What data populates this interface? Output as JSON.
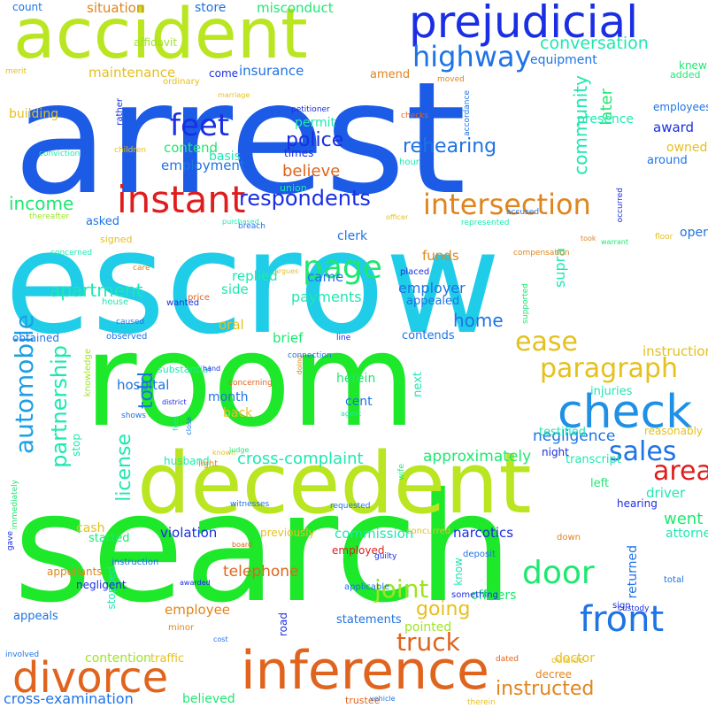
{
  "words": [
    {
      "text": "arrest",
      "color": "#1b5be6"
    },
    {
      "text": "escrow",
      "color": "#1fcde8"
    },
    {
      "text": "room",
      "color": "#1de82a"
    },
    {
      "text": "search",
      "color": "#1de82a"
    },
    {
      "text": "decedent",
      "color": "#b9e521"
    },
    {
      "text": "accident",
      "color": "#b9e521"
    },
    {
      "text": "prejudicial",
      "color": "#1a2ee3"
    },
    {
      "text": "inference",
      "color": "#e0641d"
    },
    {
      "text": "divorce",
      "color": "#e0641d"
    },
    {
      "text": "check",
      "color": "#1e90e5"
    },
    {
      "text": "instant",
      "color": "#e01d1d"
    },
    {
      "text": "automobile",
      "color": "#1e9fe5"
    },
    {
      "text": "front",
      "color": "#1e73e5"
    },
    {
      "text": "highway",
      "color": "#1e73e5"
    },
    {
      "text": "feet",
      "color": "#1a2ee3"
    },
    {
      "text": "intersection",
      "color": "#e0851d"
    },
    {
      "text": "page",
      "color": "#1de870"
    },
    {
      "text": "door",
      "color": "#1de870"
    },
    {
      "text": "paragraph",
      "color": "#e5c01e"
    },
    {
      "text": "ease",
      "color": "#e5c01e"
    },
    {
      "text": "area",
      "color": "#e01d1d"
    },
    {
      "text": "sales",
      "color": "#1e73e5"
    },
    {
      "text": "respondents",
      "color": "#1a2ee3"
    },
    {
      "text": "partnership",
      "color": "#1de8b0"
    },
    {
      "text": "rehearing",
      "color": "#1e73e5"
    },
    {
      "text": "license",
      "color": "#1de8b0"
    },
    {
      "text": "truck",
      "color": "#e0641d"
    },
    {
      "text": "joint",
      "color": "#9ee521"
    },
    {
      "text": "going",
      "color": "#e5c01e"
    },
    {
      "text": "instructed",
      "color": "#e0851d"
    },
    {
      "text": "told",
      "color": "#1e73e5"
    },
    {
      "text": "police",
      "color": "#1a2ee3"
    },
    {
      "text": "income",
      "color": "#1de870"
    },
    {
      "text": "community",
      "color": "#1de8b0"
    },
    {
      "text": "apartment",
      "color": "#1de8b0"
    },
    {
      "text": "conversation",
      "color": "#1de8b0"
    },
    {
      "text": "home",
      "color": "#1e73e5"
    },
    {
      "text": "cross-complaint",
      "color": "#1de8b0"
    },
    {
      "text": "negligence",
      "color": "#1e73e5"
    },
    {
      "text": "later",
      "color": "#1de870"
    },
    {
      "text": "award",
      "color": "#1a2ee3"
    },
    {
      "text": "payments",
      "color": "#1de8b0"
    },
    {
      "text": "believe",
      "color": "#e0641d"
    },
    {
      "text": "funds",
      "color": "#e0851d"
    },
    {
      "text": "employer",
      "color": "#1e73e5"
    },
    {
      "text": "telephone",
      "color": "#e0641d"
    },
    {
      "text": "approximately",
      "color": "#1de870"
    },
    {
      "text": "went",
      "color": "#1de870"
    },
    {
      "text": "driver",
      "color": "#1de8b0"
    },
    {
      "text": "supra",
      "color": "#1de8b0"
    },
    {
      "text": "cross-examination",
      "color": "#1e73e5"
    },
    {
      "text": "hospital",
      "color": "#1e73e5"
    },
    {
      "text": "employee",
      "color": "#e0851d"
    },
    {
      "text": "commission",
      "color": "#1de8b0"
    },
    {
      "text": "narcotics",
      "color": "#1a2ee3"
    },
    {
      "text": "violation",
      "color": "#1a2ee3"
    },
    {
      "text": "employment",
      "color": "#1e73e5"
    },
    {
      "text": "contend",
      "color": "#1de870"
    },
    {
      "text": "insurance",
      "color": "#1e73e5"
    },
    {
      "text": "maintenance",
      "color": "#e5c01e"
    },
    {
      "text": "situation",
      "color": "#e0851d"
    },
    {
      "text": "misconduct",
      "color": "#1de870"
    },
    {
      "text": "count",
      "color": "#1e73e5"
    },
    {
      "text": "store",
      "color": "#1e73e5"
    },
    {
      "text": "equipment",
      "color": "#1e73e5"
    },
    {
      "text": "building",
      "color": "#e5c01e"
    },
    {
      "text": "owned",
      "color": "#e5c01e"
    },
    {
      "text": "employees",
      "color": "#1e73e5"
    },
    {
      "text": "around",
      "color": "#1e73e5"
    },
    {
      "text": "permit",
      "color": "#1de8b0"
    },
    {
      "text": "basis",
      "color": "#1de8b0"
    },
    {
      "text": "times",
      "color": "#1a2ee3"
    },
    {
      "text": "operation",
      "color": "#1e73e5"
    },
    {
      "text": "clerk",
      "color": "#1e73e5"
    },
    {
      "text": "came",
      "color": "#1e73e5"
    },
    {
      "text": "replied",
      "color": "#1de8b0"
    },
    {
      "text": "side",
      "color": "#1de8b0"
    },
    {
      "text": "oral",
      "color": "#e5c01e"
    },
    {
      "text": "brief",
      "color": "#1de870"
    },
    {
      "text": "appealed",
      "color": "#1e73e5"
    },
    {
      "text": "contends",
      "color": "#1e73e5"
    },
    {
      "text": "instructions",
      "color": "#e5c01e"
    },
    {
      "text": "herein",
      "color": "#1de870"
    },
    {
      "text": "cent",
      "color": "#1e73e5"
    },
    {
      "text": "back",
      "color": "#e5c01e"
    },
    {
      "text": "month",
      "color": "#1e73e5"
    },
    {
      "text": "next",
      "color": "#1de8b0"
    },
    {
      "text": "testified",
      "color": "#1de8b0"
    },
    {
      "text": "injuries",
      "color": "#1de8b0"
    },
    {
      "text": "reasonably",
      "color": "#e5c01e"
    },
    {
      "text": "transcript",
      "color": "#1de8b0"
    },
    {
      "text": "night",
      "color": "#1a2ee3"
    },
    {
      "text": "left",
      "color": "#1de870"
    },
    {
      "text": "hearing",
      "color": "#1a2ee3"
    },
    {
      "text": "attorneys",
      "color": "#1de8b0"
    },
    {
      "text": "officers",
      "color": "#1de870"
    },
    {
      "text": "pointed",
      "color": "#9ee521"
    },
    {
      "text": "returned",
      "color": "#1e73e5"
    },
    {
      "text": "doctor",
      "color": "#e5c01e"
    },
    {
      "text": "decree",
      "color": "#e0851d"
    },
    {
      "text": "cash",
      "color": "#e5c01e"
    },
    {
      "text": "started",
      "color": "#1de870"
    },
    {
      "text": "previously",
      "color": "#e5c01e"
    },
    {
      "text": "appeals",
      "color": "#1e73e5"
    },
    {
      "text": "stopped",
      "color": "#1de8b0"
    },
    {
      "text": "contention",
      "color": "#9ee521"
    },
    {
      "text": "traffic",
      "color": "#e5c01e"
    },
    {
      "text": "believed",
      "color": "#1de870"
    },
    {
      "text": "statements",
      "color": "#1e73e5"
    },
    {
      "text": "road",
      "color": "#1a2ee3"
    },
    {
      "text": "know",
      "color": "#1de8b0"
    },
    {
      "text": "stop",
      "color": "#1de8b0"
    },
    {
      "text": "appellants",
      "color": "#e0851d"
    },
    {
      "text": "negligent",
      "color": "#1a2ee3"
    },
    {
      "text": "asked",
      "color": "#1e73e5"
    },
    {
      "text": "affidavit",
      "color": "#9ee521"
    },
    {
      "text": "come",
      "color": "#1a2ee3"
    },
    {
      "text": "amend",
      "color": "#e0851d"
    },
    {
      "text": "knew",
      "color": "#1de870"
    },
    {
      "text": "added",
      "color": "#1de870"
    },
    {
      "text": "presence",
      "color": "#1de8b0"
    },
    {
      "text": "merit",
      "color": "#e5c01e"
    },
    {
      "text": "signed",
      "color": "#e5c01e"
    },
    {
      "text": "house",
      "color": "#1de8b0"
    },
    {
      "text": "wanted",
      "color": "#1a2ee3"
    },
    {
      "text": "observed",
      "color": "#1e73e5"
    },
    {
      "text": "obtained",
      "color": "#1e73e5"
    },
    {
      "text": "substantial",
      "color": "#1de8b0"
    },
    {
      "text": "husband",
      "color": "#1de8b0"
    },
    {
      "text": "trustee",
      "color": "#e0641d"
    },
    {
      "text": "concurred",
      "color": "#e5c01e"
    },
    {
      "text": "employed",
      "color": "#e01d1d"
    },
    {
      "text": "guilty",
      "color": "#1a2ee3"
    },
    {
      "text": "deposit",
      "color": "#1e73e5"
    },
    {
      "text": "down",
      "color": "#e0851d"
    },
    {
      "text": "total",
      "color": "#1e73e5"
    },
    {
      "text": "sign",
      "color": "#1a2ee3"
    },
    {
      "text": "custody",
      "color": "#1a2ee3"
    },
    {
      "text": "dated",
      "color": "#e0641d"
    },
    {
      "text": "outside",
      "color": "#e5c01e"
    },
    {
      "text": "therein",
      "color": "#e5c01e"
    },
    {
      "text": "vehicle",
      "color": "#1e73e5"
    },
    {
      "text": "something",
      "color": "#1a2ee3"
    },
    {
      "text": "applicable",
      "color": "#1e73e5"
    },
    {
      "text": "cost",
      "color": "#1e73e5"
    },
    {
      "text": "minor",
      "color": "#e0851d"
    },
    {
      "text": "involved",
      "color": "#1e73e5"
    },
    {
      "text": "gave",
      "color": "#1a2ee3"
    },
    {
      "text": "immediately",
      "color": "#1de870"
    },
    {
      "text": "instruction",
      "color": "#1e73e5"
    },
    {
      "text": "awarded",
      "color": "#1a2ee3"
    },
    {
      "text": "board",
      "color": "#e0641d"
    },
    {
      "text": "requested",
      "color": "#1e73e5"
    },
    {
      "text": "witnesses",
      "color": "#1e73e5"
    },
    {
      "text": "light",
      "color": "#e0851d"
    },
    {
      "text": "known",
      "color": "#e5c01e"
    },
    {
      "text": "wife",
      "color": "#1de870"
    },
    {
      "text": "judge",
      "color": "#1de870"
    },
    {
      "text": "agent",
      "color": "#1de8b0"
    },
    {
      "text": "fees",
      "color": "#1de8b0"
    },
    {
      "text": "close",
      "color": "#1e73e5"
    },
    {
      "text": "shows",
      "color": "#1e73e5"
    },
    {
      "text": "district",
      "color": "#1a2ee3"
    },
    {
      "text": "concerning",
      "color": "#e0641d"
    },
    {
      "text": "hand",
      "color": "#1a2ee3"
    },
    {
      "text": "doing",
      "color": "#e0851d"
    },
    {
      "text": "knowledge",
      "color": "#9ee521"
    },
    {
      "text": "connection",
      "color": "#1e73e5"
    },
    {
      "text": "line",
      "color": "#1a2ee3"
    },
    {
      "text": "caused",
      "color": "#1e73e5"
    },
    {
      "text": "price",
      "color": "#e0641d"
    },
    {
      "text": "care",
      "color": "#e0851d"
    },
    {
      "text": "argues",
      "color": "#e5c01e"
    },
    {
      "text": "placed",
      "color": "#1a2ee3"
    },
    {
      "text": "supported",
      "color": "#1de870"
    },
    {
      "text": "compensation",
      "color": "#e0851d"
    },
    {
      "text": "warrant",
      "color": "#1de870"
    },
    {
      "text": "concerned",
      "color": "#1de8b0"
    },
    {
      "text": "breach",
      "color": "#1e73e5"
    },
    {
      "text": "purchased",
      "color": "#1de8b0"
    },
    {
      "text": "thereafter",
      "color": "#9ee521"
    },
    {
      "text": "officer",
      "color": "#e5c01e"
    },
    {
      "text": "represented",
      "color": "#1de8b0"
    },
    {
      "text": "accused",
      "color": "#1e73e5"
    },
    {
      "text": "took",
      "color": "#e0851d"
    },
    {
      "text": "floor",
      "color": "#e5c01e"
    },
    {
      "text": "occurred",
      "color": "#1a2ee3"
    },
    {
      "text": "hour",
      "color": "#1de8b0"
    },
    {
      "text": "union",
      "color": "#1de8b0"
    },
    {
      "text": "children",
      "color": "#e5c01e"
    },
    {
      "text": "conviction",
      "color": "#1de8b0"
    },
    {
      "text": "rather",
      "color": "#1a2ee3"
    },
    {
      "text": "ordinary",
      "color": "#e5c01e"
    },
    {
      "text": "marriage",
      "color": "#e5c01e"
    },
    {
      "text": "petitioner",
      "color": "#1a2ee3"
    },
    {
      "text": "checks",
      "color": "#e0641d"
    },
    {
      "text": "accordance",
      "color": "#1e73e5"
    },
    {
      "text": "moved",
      "color": "#e0851d"
    },
    {
      "text": "bank",
      "color": "#1e73e5"
    },
    {
      "text": "ordinance",
      "color": "#1e73e5"
    }
  ]
}
